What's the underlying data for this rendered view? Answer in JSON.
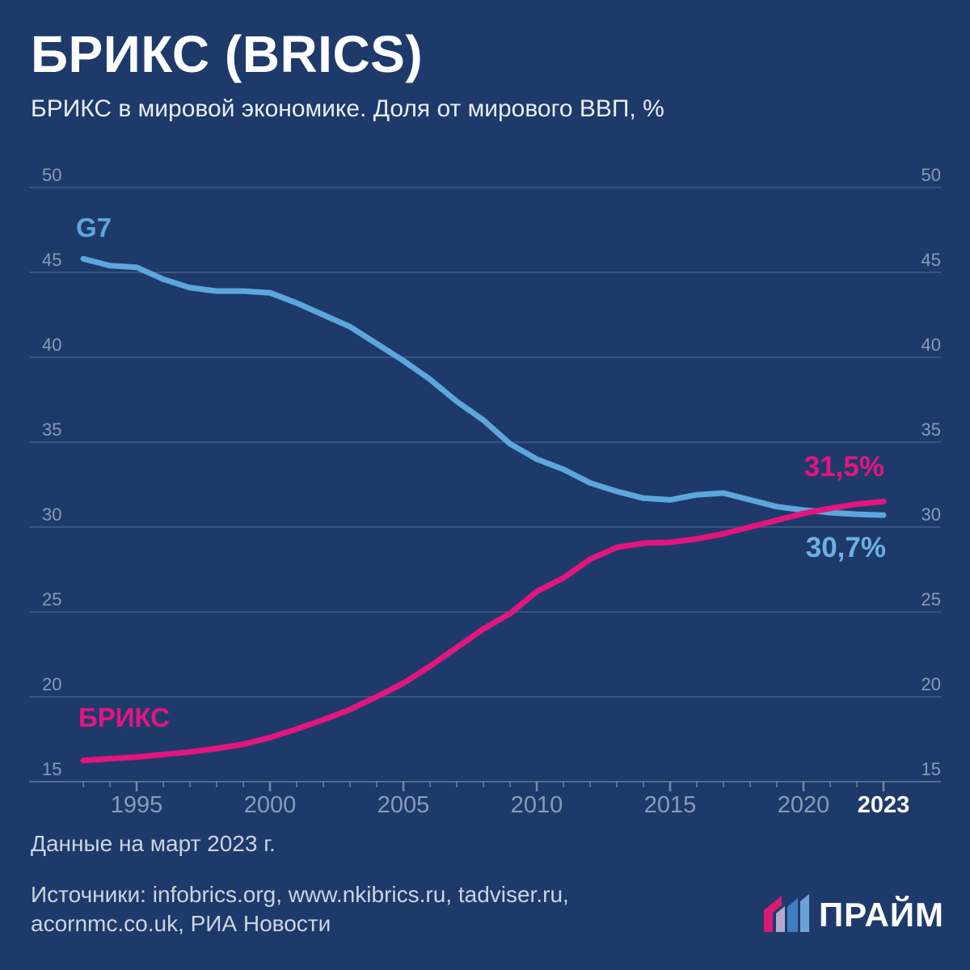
{
  "title": "БРИКС (BRICS)",
  "subtitle": "БРИКС в мировой экономике. Доля от мирового ВВП, %",
  "chart_data": {
    "type": "line",
    "x": [
      1993,
      1994,
      1995,
      1996,
      1997,
      1998,
      1999,
      2000,
      2001,
      2002,
      2003,
      2004,
      2005,
      2006,
      2007,
      2008,
      2009,
      2010,
      2011,
      2012,
      2013,
      2014,
      2015,
      2016,
      2017,
      2018,
      2019,
      2020,
      2021,
      2022,
      2023
    ],
    "series": [
      {
        "name": "G7",
        "color": "#5da6dd",
        "end_label": "30,7%",
        "values": [
          45.8,
          45.4,
          45.3,
          44.6,
          44.1,
          43.9,
          43.9,
          43.8,
          43.2,
          42.5,
          41.8,
          40.8,
          39.8,
          38.7,
          37.4,
          36.3,
          34.9,
          34.0,
          33.4,
          32.6,
          32.1,
          31.7,
          31.6,
          31.9,
          32.0,
          31.6,
          31.2,
          31.0,
          30.85,
          30.75,
          30.7
        ]
      },
      {
        "name": "БРИКС",
        "color": "#e3157f",
        "end_label": "31,5%",
        "values": [
          16.25,
          16.35,
          16.45,
          16.6,
          16.75,
          16.95,
          17.2,
          17.6,
          18.1,
          18.65,
          19.25,
          20.0,
          20.8,
          21.8,
          22.9,
          24.0,
          24.9,
          26.2,
          27.0,
          28.1,
          28.8,
          29.05,
          29.1,
          29.3,
          29.6,
          30.0,
          30.4,
          30.8,
          31.1,
          31.35,
          31.5
        ]
      }
    ],
    "y_axis": {
      "min": 15,
      "max": 50,
      "step": 5,
      "ticks": [
        50,
        45,
        40,
        35,
        30,
        25,
        20,
        15
      ],
      "side": "both",
      "unit": "%"
    },
    "x_axis": {
      "start": 1993,
      "end": 2023,
      "labeled_years": [
        1995,
        2000,
        2005,
        2010,
        2015,
        2020,
        2023
      ],
      "highlight_year": 2023
    },
    "grid": true,
    "legend": "inline-labels",
    "title": "БРИКС в мировой экономике. Доля от мирового ВВП, %"
  },
  "colors": {
    "background": "#1e3a6a",
    "grid": "#aabdd6",
    "axis_text": "#8a9ab8",
    "highlight_text": "#ffffff",
    "footer_text": "#ccd4e2"
  },
  "footer": {
    "note": "Данные на март 2023 г.",
    "sources_line1": "Источники: infobrics.org, www.nkibrics.ru, tadviser.ru,",
    "sources_line2": "acornmc.co.uk, РИА Новости"
  },
  "logo": {
    "text": "ПРАЙМ",
    "icon": "prime-logo-icon",
    "bar_colors": [
      "#d81a72",
      "#b3a8cc",
      "#3f7cc2",
      "#6ba3d8"
    ]
  }
}
